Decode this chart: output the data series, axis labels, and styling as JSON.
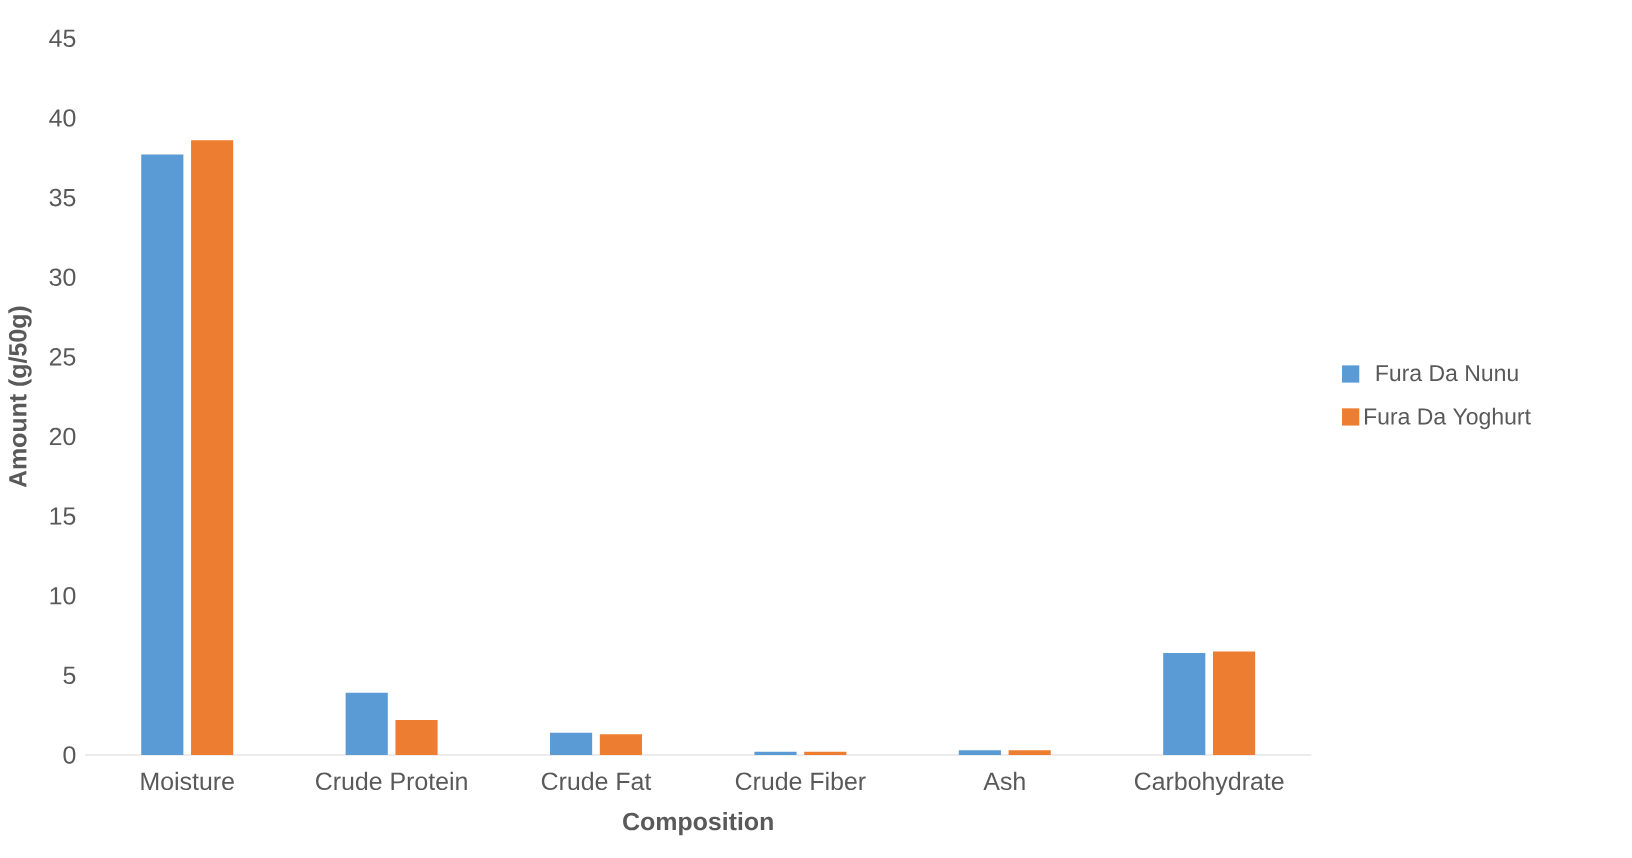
{
  "chart_data": {
    "type": "bar",
    "xlabel": "Composition",
    "ylabel": "Amount (g/50g)",
    "categories": [
      "Moisture",
      "Crude Protein",
      "Crude Fat",
      "Crude Fiber",
      "Ash",
      "Carbohydrate"
    ],
    "series": [
      {
        "name": "Fura Da Nunu",
        "color": "#5b9bd5",
        "values": [
          37.7,
          3.9,
          1.4,
          0.2,
          0.3,
          6.4
        ]
      },
      {
        "name": "Fura Da Yoghurt",
        "color": "#ed7d31",
        "values": [
          38.6,
          2.2,
          1.3,
          0.2,
          0.3,
          6.5
        ]
      }
    ],
    "ylim": [
      0,
      45
    ],
    "yticks": [
      0,
      5,
      10,
      15,
      20,
      25,
      30,
      35,
      40,
      45
    ],
    "grid": false,
    "legend": "right"
  }
}
